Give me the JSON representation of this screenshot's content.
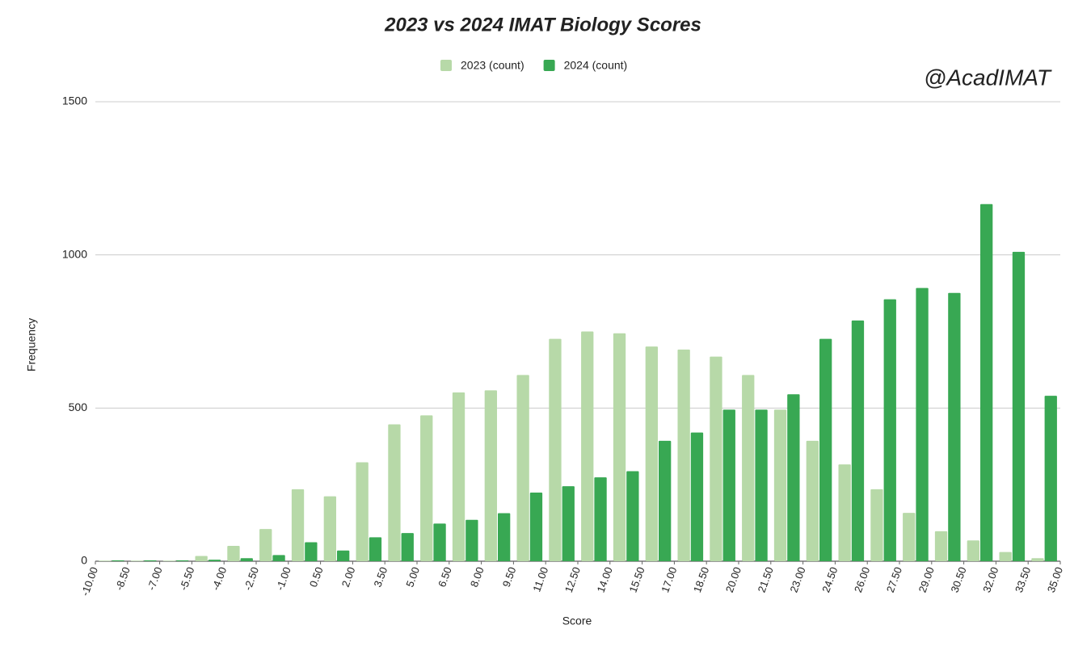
{
  "chart_data": {
    "type": "histogram",
    "title": "2023 vs 2024 IMAT Biology Scores",
    "annotation": "@AcadIMAT",
    "x_label": "Score",
    "y_label": "Frequency",
    "bins": [
      {
        "value": -10,
        "label": "-10.00"
      },
      {
        "value": -8.5,
        "label": "-8.50"
      },
      {
        "value": -7,
        "label": "-7.00"
      },
      {
        "value": -5.5,
        "label": "-5.50"
      },
      {
        "value": -4,
        "label": "-4.00"
      },
      {
        "value": -2.5,
        "label": "-2.50"
      },
      {
        "value": -1,
        "label": "-1.00"
      },
      {
        "value": 0.5,
        "label": "0.50"
      },
      {
        "value": 2,
        "label": "2.00"
      },
      {
        "value": 3.5,
        "label": "3.50"
      },
      {
        "value": 5,
        "label": "5.00"
      },
      {
        "value": 6.5,
        "label": "6.50"
      },
      {
        "value": 8,
        "label": "8.00"
      },
      {
        "value": 9.5,
        "label": "9.50"
      },
      {
        "value": 11,
        "label": "11.00"
      },
      {
        "value": 12.5,
        "label": "12.50"
      },
      {
        "value": 14,
        "label": "14.00"
      },
      {
        "value": 15.5,
        "label": "15.50"
      },
      {
        "value": 17,
        "label": "17.00"
      },
      {
        "value": 18.5,
        "label": "18.50"
      },
      {
        "value": 20,
        "label": "20.00"
      },
      {
        "value": 21.5,
        "label": "21.50"
      },
      {
        "value": 23,
        "label": "23.00"
      },
      {
        "value": 24.5,
        "label": "24.50"
      },
      {
        "value": 26,
        "label": "26.00"
      },
      {
        "value": 27.5,
        "label": "27.50"
      },
      {
        "value": 29,
        "label": "29.00"
      },
      {
        "value": 30.5,
        "label": "30.50"
      },
      {
        "value": 32,
        "label": "32.00"
      },
      {
        "value": 33.5,
        "label": "33.50"
      },
      {
        "value": 35,
        "label": "35.00"
      }
    ],
    "series": [
      {
        "name": "2023 (count)",
        "color": "#b7d9a8",
        "values": [
          2,
          2,
          2,
          17,
          50,
          105,
          235,
          212,
          323,
          447,
          476,
          551,
          558,
          608,
          726,
          750,
          744,
          701,
          691,
          668,
          608,
          495,
          393,
          316,
          235,
          158,
          98,
          68,
          30,
          10
        ]
      },
      {
        "name": "2024 (count)",
        "color": "#38a853",
        "values": [
          3,
          3,
          3,
          5,
          10,
          20,
          62,
          35,
          78,
          92,
          123,
          135,
          157,
          224,
          245,
          274,
          294,
          393,
          420,
          495,
          495,
          545,
          726,
          786,
          855,
          892,
          876,
          1166,
          1010,
          540
        ]
      }
    ],
    "xlim": [
      -10,
      35
    ],
    "ylim": [
      0,
      1500
    ],
    "yticks": [
      0,
      500,
      1000,
      1500
    ],
    "grid": true,
    "legend": "top"
  }
}
